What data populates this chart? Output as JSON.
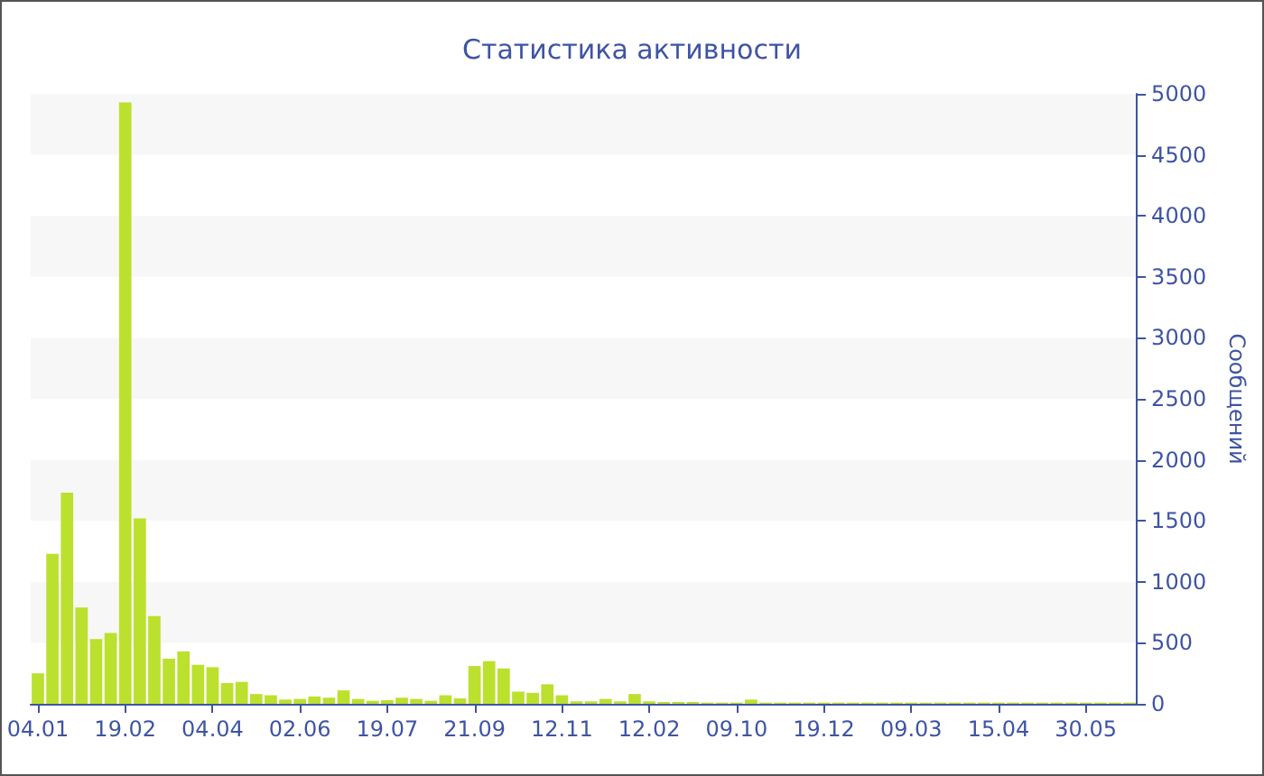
{
  "chart_data": {
    "type": "bar",
    "title": "Статистика активности",
    "ylabel": "Сообщений",
    "categories": [
      "04.01",
      null,
      null,
      null,
      null,
      null,
      "19.02",
      null,
      null,
      null,
      null,
      null,
      "04.04",
      null,
      null,
      null,
      null,
      null,
      "02.06",
      null,
      null,
      null,
      null,
      null,
      "19.07",
      null,
      null,
      null,
      null,
      null,
      "21.09",
      null,
      null,
      null,
      null,
      null,
      "12.11",
      null,
      null,
      null,
      null,
      null,
      "12.02",
      null,
      null,
      null,
      null,
      null,
      "09.10",
      null,
      null,
      null,
      null,
      null,
      "19.12",
      null,
      null,
      null,
      null,
      null,
      "09.03",
      null,
      null,
      null,
      null,
      null,
      "15.04",
      null,
      null,
      null,
      null,
      null,
      "30.05",
      null,
      null,
      null
    ],
    "values": [
      250,
      1230,
      1730,
      790,
      530,
      580,
      4930,
      1520,
      720,
      370,
      430,
      320,
      300,
      170,
      180,
      80,
      70,
      35,
      40,
      60,
      50,
      110,
      40,
      25,
      30,
      50,
      40,
      25,
      70,
      45,
      310,
      350,
      290,
      100,
      90,
      160,
      70,
      20,
      20,
      40,
      20,
      80,
      20,
      15,
      15,
      15,
      10,
      10,
      10,
      35,
      10,
      10,
      10,
      10,
      10,
      10,
      10,
      10,
      10,
      10,
      10,
      10,
      10,
      10,
      10,
      10,
      10,
      10,
      10,
      10,
      10,
      10,
      10,
      10,
      10,
      10
    ],
    "color": "#bce02e",
    "ylim": [
      0,
      5000
    ],
    "yticks": [
      0,
      500,
      1000,
      1500,
      2000,
      2500,
      3000,
      3500,
      4000,
      4500,
      5000
    ]
  }
}
